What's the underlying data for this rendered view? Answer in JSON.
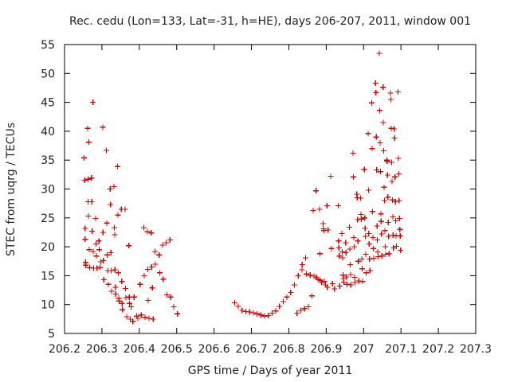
{
  "chart_data": {
    "type": "scatter",
    "title": "Rec. cedu (Lon=133, Lat=-31, h=HE), days 206-207, 2011, window 001",
    "xlabel": "GPS time / Days of year 2011",
    "ylabel": "STEC from uqrg / TECUs",
    "xlim": [
      206.2,
      207.3
    ],
    "ylim": [
      5,
      55
    ],
    "x_ticks": [
      206.2,
      206.3,
      206.4,
      206.5,
      206.6,
      206.7,
      206.8,
      206.9,
      207,
      207.1,
      207.2,
      207.3
    ],
    "x_tick_labels": [
      "206.2",
      "206.3",
      "206.4",
      "206.5",
      "206.6",
      "206.7",
      "206.8",
      "206.9",
      "207",
      "207.1",
      "207.2",
      "207.3"
    ],
    "y_ticks": [
      5,
      10,
      15,
      20,
      25,
      30,
      35,
      40,
      45,
      50,
      55
    ],
    "y_tick_labels": [
      "5",
      "10",
      "15",
      "20",
      "25",
      "30",
      "35",
      "40",
      "45",
      "50",
      "55"
    ],
    "grid": false,
    "legend": "none",
    "marker": "plus",
    "color": "#d70000",
    "series": [
      {
        "points": [
          [
            206.252,
            35.4
          ],
          [
            206.254,
            31.5
          ],
          [
            206.255,
            23.2
          ],
          [
            206.255,
            21.3
          ],
          [
            206.256,
            17.3
          ],
          [
            206.257,
            16.8
          ],
          [
            206.262,
            40.5
          ],
          [
            206.263,
            31.7
          ],
          [
            206.263,
            27.8
          ],
          [
            206.264,
            25.3
          ],
          [
            206.265,
            38.1
          ],
          [
            206.266,
            19.5
          ],
          [
            206.267,
            16.4
          ],
          [
            206.272,
            31.9
          ],
          [
            206.273,
            27.8
          ],
          [
            206.274,
            22.7
          ],
          [
            206.276,
            45.0
          ],
          [
            206.277,
            19.2
          ],
          [
            206.278,
            16.3
          ],
          [
            206.283,
            24.9
          ],
          [
            206.284,
            20.5
          ],
          [
            206.285,
            18.4
          ],
          [
            206.287,
            16.3
          ],
          [
            206.292,
            21.0
          ],
          [
            206.293,
            19.5
          ],
          [
            206.295,
            16.4
          ],
          [
            206.297,
            17.4
          ],
          [
            206.302,
            40.7
          ],
          [
            206.303,
            22.5
          ],
          [
            206.304,
            17.6
          ],
          [
            206.305,
            14.3
          ],
          [
            206.312,
            36.7
          ],
          [
            206.313,
            24.1
          ],
          [
            206.314,
            18.6
          ],
          [
            206.316,
            15.9
          ],
          [
            206.317,
            13.5
          ],
          [
            206.322,
            30.0
          ],
          [
            206.323,
            27.3
          ],
          [
            206.324,
            19.0
          ],
          [
            206.325,
            15.9
          ],
          [
            206.326,
            12.3
          ],
          [
            206.332,
            30.4
          ],
          [
            206.333,
            23.3
          ],
          [
            206.334,
            22.1
          ],
          [
            206.335,
            16.0
          ],
          [
            206.336,
            13.0
          ],
          [
            206.337,
            11.8
          ],
          [
            206.342,
            33.9
          ],
          [
            206.343,
            25.5
          ],
          [
            206.344,
            15.5
          ],
          [
            206.345,
            11.1
          ],
          [
            206.346,
            10.6
          ],
          [
            206.352,
            26.5
          ],
          [
            206.353,
            14.0
          ],
          [
            206.354,
            10.2
          ],
          [
            206.355,
            9.1
          ],
          [
            206.362,
            26.5
          ],
          [
            206.363,
            12.8
          ],
          [
            206.364,
            11.2
          ],
          [
            206.366,
            7.9
          ],
          [
            206.372,
            20.2
          ],
          [
            206.373,
            11.3
          ],
          [
            206.374,
            10.2
          ],
          [
            206.376,
            7.5
          ],
          [
            206.378,
            9.6
          ],
          [
            206.383,
            7.1
          ],
          [
            206.386,
            11.3
          ],
          [
            206.393,
            8.0
          ],
          [
            206.396,
            7.6
          ],
          [
            206.402,
            13.5
          ],
          [
            206.405,
            8.2
          ],
          [
            206.412,
            23.3
          ],
          [
            206.413,
            15.0
          ],
          [
            206.415,
            7.8
          ],
          [
            206.422,
            22.6
          ],
          [
            206.423,
            16.1
          ],
          [
            206.424,
            10.7
          ],
          [
            206.426,
            7.6
          ],
          [
            206.432,
            22.4
          ],
          [
            206.433,
            16.5
          ],
          [
            206.435,
            12.9
          ],
          [
            206.437,
            7.5
          ],
          [
            206.442,
            19.2
          ],
          [
            206.443,
            17.0
          ],
          [
            206.453,
            18.6
          ],
          [
            206.455,
            15.5
          ],
          [
            206.462,
            20.3
          ],
          [
            206.464,
            14.4
          ],
          [
            206.472,
            20.7
          ],
          [
            206.474,
            11.7
          ],
          [
            206.482,
            21.2
          ],
          [
            206.484,
            11.3
          ],
          [
            206.492,
            9.6
          ],
          [
            206.502,
            8.4
          ],
          [
            206.655,
            10.3
          ],
          [
            206.665,
            9.7
          ],
          [
            206.675,
            9.0
          ],
          [
            206.685,
            8.8
          ],
          [
            206.695,
            8.7
          ],
          [
            206.705,
            8.6
          ],
          [
            206.715,
            8.4
          ],
          [
            206.725,
            8.2
          ],
          [
            206.735,
            8.0
          ],
          [
            206.745,
            8.1
          ],
          [
            206.755,
            8.5
          ],
          [
            206.765,
            8.9
          ],
          [
            206.775,
            9.7
          ],
          [
            206.785,
            10.5
          ],
          [
            206.795,
            11.3
          ],
          [
            206.805,
            12.1
          ],
          [
            206.815,
            13.4
          ],
          [
            206.822,
            8.5
          ],
          [
            206.825,
            15.0
          ],
          [
            206.832,
            9.0
          ],
          [
            206.835,
            16.0
          ],
          [
            206.836,
            16.9
          ],
          [
            206.842,
            9.3
          ],
          [
            206.845,
            18.1
          ],
          [
            206.847,
            15.3
          ],
          [
            206.852,
            9.6
          ],
          [
            206.857,
            15.1
          ],
          [
            206.862,
            11.5
          ],
          [
            206.865,
            26.3
          ],
          [
            206.867,
            14.9
          ],
          [
            206.873,
            29.7
          ],
          [
            206.874,
            14.7
          ],
          [
            206.878,
            14.4
          ],
          [
            206.882,
            26.5
          ],
          [
            206.883,
            18.8
          ],
          [
            206.884,
            14.2
          ],
          [
            206.888,
            13.9
          ],
          [
            206.892,
            24.0
          ],
          [
            206.893,
            23.1
          ],
          [
            206.894,
            22.8
          ],
          [
            206.895,
            14.0
          ],
          [
            206.898,
            13.4
          ],
          [
            206.902,
            27.1
          ],
          [
            206.903,
            13.0
          ],
          [
            206.905,
            22.9
          ],
          [
            206.912,
            32.2
          ],
          [
            206.914,
            19.7
          ],
          [
            206.917,
            13.6
          ],
          [
            206.922,
            12.7
          ],
          [
            206.932,
            27.1
          ],
          [
            206.933,
            21.0
          ],
          [
            206.934,
            19.8
          ],
          [
            206.935,
            18.4
          ],
          [
            206.936,
            13.2
          ],
          [
            206.942,
            22.3
          ],
          [
            206.943,
            19.1
          ],
          [
            206.944,
            18.1
          ],
          [
            206.945,
            15.1
          ],
          [
            206.946,
            14.5
          ],
          [
            206.947,
            13.9
          ],
          [
            206.952,
            20.7
          ],
          [
            206.953,
            19.0
          ],
          [
            206.954,
            14.8
          ],
          [
            206.956,
            13.5
          ],
          [
            206.962,
            23.4
          ],
          [
            206.963,
            19.6
          ],
          [
            206.964,
            16.9
          ],
          [
            206.965,
            15.2
          ],
          [
            206.966,
            13.4
          ],
          [
            206.972,
            36.2
          ],
          [
            206.973,
            32.1
          ],
          [
            206.974,
            21.6
          ],
          [
            206.975,
            20.0
          ],
          [
            206.976,
            14.7
          ],
          [
            206.977,
            13.8
          ],
          [
            206.982,
            29.1
          ],
          [
            206.983,
            28.5
          ],
          [
            206.984,
            24.7
          ],
          [
            206.985,
            21.0
          ],
          [
            206.986,
            17.5
          ],
          [
            206.987,
            14.1
          ],
          [
            206.992,
            28.4
          ],
          [
            206.993,
            25.6
          ],
          [
            206.994,
            24.8
          ],
          [
            206.995,
            17.9
          ],
          [
            206.996,
            16.2
          ],
          [
            206.997,
            14.0
          ],
          [
            207.002,
            33.4
          ],
          [
            207.003,
            25.0
          ],
          [
            207.004,
            23.2
          ],
          [
            207.005,
            21.8
          ],
          [
            207.006,
            18.7
          ],
          [
            207.007,
            15.5
          ],
          [
            207.012,
            39.6
          ],
          [
            207.013,
            29.8
          ],
          [
            207.014,
            22.3
          ],
          [
            207.015,
            20.5
          ],
          [
            207.016,
            17.9
          ],
          [
            207.017,
            15.9
          ],
          [
            207.022,
            44.9
          ],
          [
            207.023,
            37.0
          ],
          [
            207.024,
            26.1
          ],
          [
            207.025,
            21.6
          ],
          [
            207.026,
            19.7
          ],
          [
            207.027,
            18.0
          ],
          [
            207.032,
            48.3
          ],
          [
            207.033,
            46.7
          ],
          [
            207.034,
            39.0
          ],
          [
            207.035,
            33.3
          ],
          [
            207.036,
            23.6
          ],
          [
            207.037,
            21.2
          ],
          [
            207.038,
            19.1
          ],
          [
            207.039,
            18.3
          ],
          [
            207.042,
            53.5
          ],
          [
            207.043,
            43.6
          ],
          [
            207.044,
            38.0
          ],
          [
            207.045,
            33.0
          ],
          [
            207.046,
            25.7
          ],
          [
            207.047,
            24.4
          ],
          [
            207.048,
            22.2
          ],
          [
            207.049,
            18.4
          ],
          [
            207.052,
            47.6
          ],
          [
            207.053,
            41.5
          ],
          [
            207.054,
            36.6
          ],
          [
            207.055,
            30.3
          ],
          [
            207.056,
            28.0
          ],
          [
            207.057,
            22.8
          ],
          [
            207.058,
            20.0
          ],
          [
            207.059,
            18.7
          ],
          [
            207.062,
            35.0
          ],
          [
            207.063,
            34.8
          ],
          [
            207.064,
            32.4
          ],
          [
            207.065,
            28.6
          ],
          [
            207.066,
            24.2
          ],
          [
            207.067,
            21.8
          ],
          [
            207.068,
            18.8
          ],
          [
            207.072,
            46.6
          ],
          [
            207.073,
            45.5
          ],
          [
            207.074,
            40.5
          ],
          [
            207.075,
            34.6
          ],
          [
            207.076,
            31.3
          ],
          [
            207.077,
            28.1
          ],
          [
            207.078,
            25.2
          ],
          [
            207.079,
            22.0
          ],
          [
            207.08,
            19.8
          ],
          [
            207.082,
            40.4
          ],
          [
            207.083,
            38.8
          ],
          [
            207.084,
            32.1
          ],
          [
            207.085,
            27.8
          ],
          [
            207.086,
            24.5
          ],
          [
            207.087,
            21.9
          ],
          [
            207.088,
            20.1
          ],
          [
            207.092,
            46.8
          ],
          [
            207.093,
            35.3
          ],
          [
            207.094,
            32.6
          ],
          [
            207.095,
            28.0
          ],
          [
            207.096,
            24.9
          ],
          [
            207.097,
            23.0
          ],
          [
            207.098,
            21.9
          ],
          [
            207.099,
            19.4
          ]
        ]
      }
    ]
  }
}
